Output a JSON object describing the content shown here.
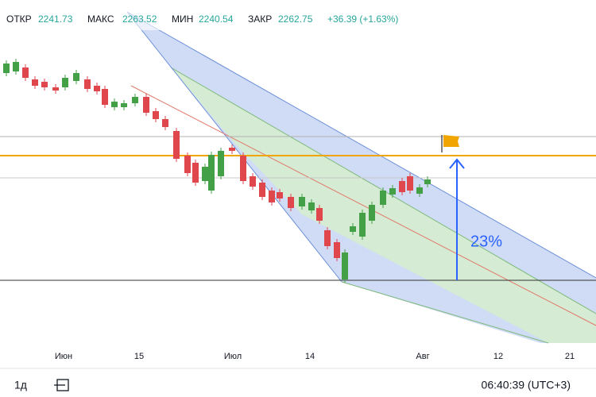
{
  "header": {
    "open_label": "ОТКР",
    "open": "2241.73",
    "high_label": "МАКС",
    "high": "2263.52",
    "low_label": "МИН",
    "low": "2240.54",
    "close_label": "ЗАКР",
    "close": "2262.75",
    "change": "+36.39 (+1.63%)"
  },
  "x_axis": {
    "labels": [
      "Июн",
      "15",
      "Июл",
      "14",
      "Авг",
      "12",
      "21"
    ]
  },
  "annotation": "23%",
  "toolbar": {
    "interval": "1д",
    "time": "06:40:39 (UTC+3)"
  }
}
